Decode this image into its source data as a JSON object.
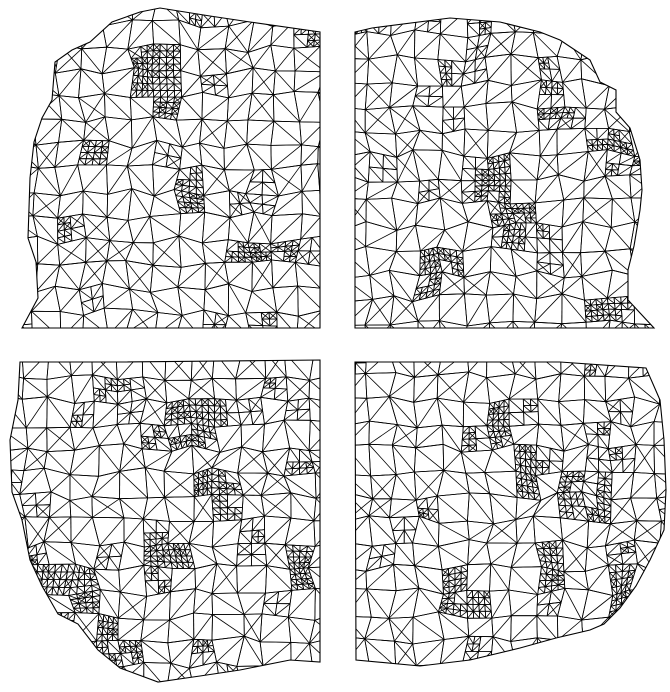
{
  "figure": {
    "description_visible_text": "",
    "stroke_color": "#000000",
    "background_color": "#ffffff",
    "panel_count": 4,
    "panels": [
      {
        "id": "top-left",
        "mesh_type": "adaptive triangular mesh"
      },
      {
        "id": "top-right",
        "mesh_type": "adaptive triangular mesh"
      },
      {
        "id": "bottom-left",
        "mesh_type": "adaptive triangular mesh"
      },
      {
        "id": "bottom-right",
        "mesh_type": "adaptive triangular mesh"
      }
    ]
  }
}
